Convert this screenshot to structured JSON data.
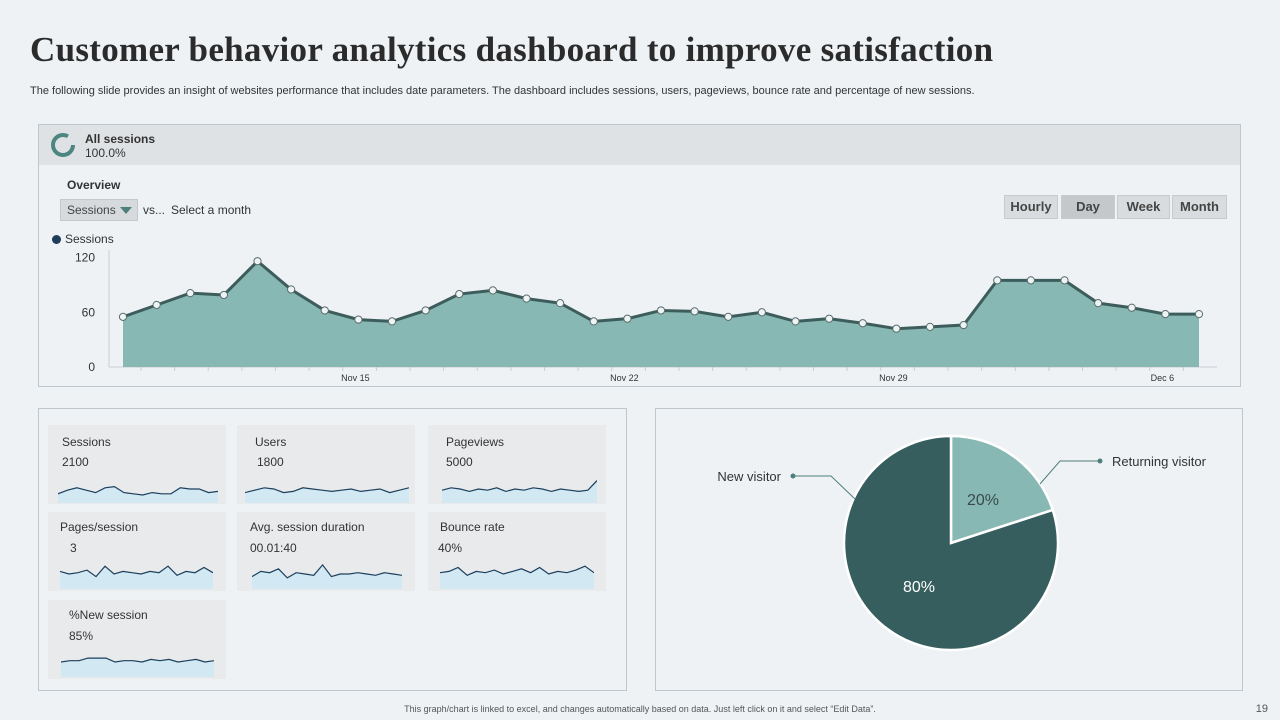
{
  "title": "Customer behavior analytics dashboard to improve satisfaction",
  "subtitle": "The following slide provides an insight of websites performance that includes date parameters. The dashboard includes sessions, users, pageviews, bounce rate and percentage of new sessions.",
  "segment": {
    "title": "All sessions",
    "percent": "100.0%"
  },
  "overview": {
    "label": "Overview",
    "metric": "Sessions",
    "vs": "vs...",
    "compare": "Select a month",
    "time_buttons": [
      "Hourly",
      "Day",
      "Week",
      "Month"
    ],
    "active_button": "Day",
    "legend": "Sessions"
  },
  "colors": {
    "area_fill": "#87b8b4",
    "area_line": "#3d5d5c",
    "pie_dark": "#365e5e",
    "pie_light": "#87b8b4",
    "spark_fill": "#d2e8f3",
    "spark_line": "#1c3f5c",
    "legend_dot": "#1e3d5a"
  },
  "kpis": [
    {
      "label": "Sessions",
      "value": "2100",
      "spark": [
        0.3,
        0.45,
        0.55,
        0.45,
        0.35,
        0.55,
        0.6,
        0.35,
        0.3,
        0.25,
        0.35,
        0.3,
        0.3,
        0.55,
        0.5,
        0.5,
        0.35,
        0.4
      ]
    },
    {
      "label": "Users",
      "value": "1800",
      "spark": [
        0.35,
        0.45,
        0.55,
        0.5,
        0.35,
        0.4,
        0.55,
        0.5,
        0.45,
        0.4,
        0.45,
        0.5,
        0.4,
        0.45,
        0.5,
        0.35,
        0.45,
        0.55
      ]
    },
    {
      "label": "Pageviews",
      "value": "5000",
      "spark": [
        0.45,
        0.55,
        0.5,
        0.4,
        0.5,
        0.45,
        0.55,
        0.4,
        0.5,
        0.45,
        0.55,
        0.5,
        0.4,
        0.5,
        0.45,
        0.4,
        0.45,
        0.85
      ]
    },
    {
      "label": "Pages/session",
      "value": "3",
      "spark": [
        0.6,
        0.5,
        0.55,
        0.65,
        0.4,
        0.8,
        0.5,
        0.6,
        0.55,
        0.5,
        0.6,
        0.55,
        0.8,
        0.45,
        0.6,
        0.55,
        0.75,
        0.55
      ]
    },
    {
      "label": "Avg.  session duration",
      "value": "00.01:40",
      "spark": [
        0.4,
        0.6,
        0.55,
        0.7,
        0.35,
        0.55,
        0.5,
        0.45,
        0.85,
        0.4,
        0.5,
        0.5,
        0.55,
        0.5,
        0.45,
        0.55,
        0.5,
        0.45
      ]
    },
    {
      "label": "Bounce rate",
      "value": "40%",
      "spark": [
        0.55,
        0.6,
        0.75,
        0.45,
        0.6,
        0.55,
        0.65,
        0.5,
        0.6,
        0.7,
        0.55,
        0.75,
        0.5,
        0.6,
        0.55,
        0.65,
        0.8,
        0.55
      ]
    },
    {
      "label": "%New session",
      "value": "85%",
      "spark": [
        0.5,
        0.55,
        0.55,
        0.65,
        0.65,
        0.65,
        0.5,
        0.55,
        0.55,
        0.5,
        0.6,
        0.55,
        0.6,
        0.5,
        0.55,
        0.6,
        0.5,
        0.55
      ]
    }
  ],
  "chart_data": [
    {
      "type": "area",
      "title": "Sessions",
      "series": [
        {
          "name": "Sessions",
          "values": [
            55,
            68,
            81,
            79,
            116,
            85,
            62,
            52,
            50,
            62,
            80,
            84,
            75,
            70,
            50,
            53,
            62,
            61,
            55,
            60,
            50,
            53,
            48,
            42,
            44,
            46,
            95,
            95,
            95,
            70,
            65,
            58,
            58
          ]
        }
      ],
      "tick_labels": [
        "Nov 15",
        "Nov 22",
        "Nov 29",
        "Dec 6"
      ],
      "yticks": [
        0,
        60,
        120
      ],
      "ylim": [
        0,
        130
      ]
    },
    {
      "type": "pie",
      "slices": [
        {
          "label": "Returning visitor",
          "value": 20,
          "display": "20%"
        },
        {
          "label": "New visitor",
          "value": 80,
          "display": "80%"
        }
      ]
    }
  ],
  "footnote": "This graph/chart is linked to excel, and changes automatically based on data. Just left click on it and select “Edit Data”.",
  "page_number": "19"
}
